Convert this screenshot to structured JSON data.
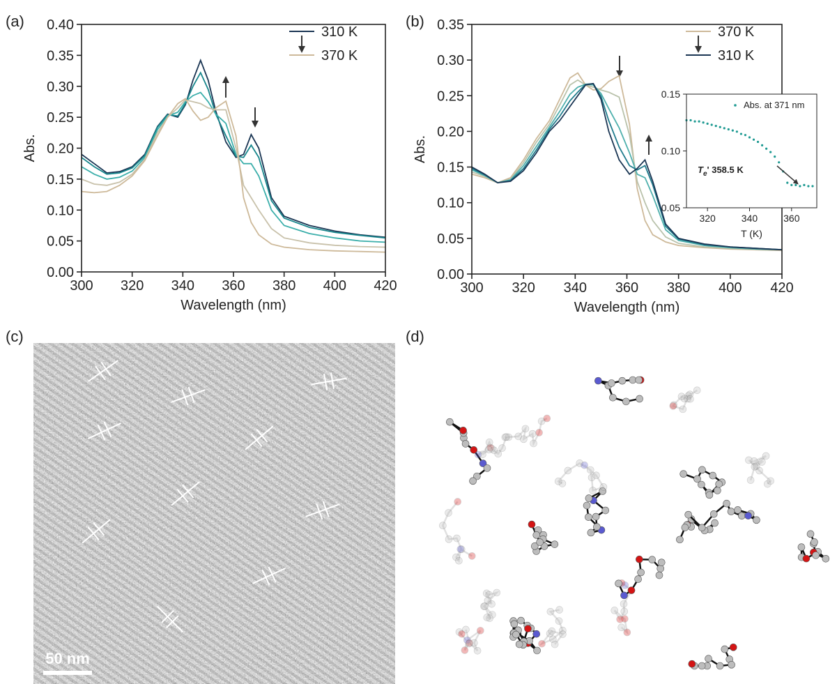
{
  "panel_labels": [
    "(a)",
    "(b)",
    "(c)",
    "(d)"
  ],
  "scale_bar": "50 nm",
  "chart_data": [
    {
      "type": "line",
      "xlabel": "Wavelength (nm)",
      "ylabel": "Abs.",
      "legend": "upper right",
      "x": [
        300,
        305,
        310,
        315,
        320,
        325,
        330,
        334,
        338,
        341,
        344,
        347,
        350,
        353,
        357,
        361,
        364,
        367,
        370,
        375,
        380,
        390,
        400,
        410,
        420
      ],
      "xlim": [
        300,
        420
      ],
      "xticks": [
        300,
        320,
        340,
        360,
        380,
        400,
        420
      ],
      "ylim": [
        0,
        0.4
      ],
      "yticks": [
        {
          "value": 0,
          "label": "0.00"
        },
        0.05,
        {
          "value": 0.1,
          "label": "0.10"
        },
        0.15,
        {
          "value": 0.2,
          "label": "0.20"
        },
        0.25,
        {
          "value": 0.3,
          "label": "0.30"
        },
        0.35,
        {
          "value": 0.4,
          "label": "0.40"
        }
      ],
      "series": [
        {
          "name": "310 K",
          "color": "#1a3553",
          "values": [
            0.19,
            0.175,
            0.16,
            0.162,
            0.17,
            0.19,
            0.235,
            0.255,
            0.25,
            0.27,
            0.31,
            0.342,
            0.31,
            0.26,
            0.21,
            0.185,
            0.19,
            0.222,
            0.2,
            0.12,
            0.09,
            0.075,
            0.066,
            0.06,
            0.056
          ]
        },
        {
          "color": "#17868c",
          "values": [
            0.185,
            0.17,
            0.158,
            0.16,
            0.168,
            0.188,
            0.234,
            0.254,
            0.252,
            0.272,
            0.3,
            0.322,
            0.295,
            0.255,
            0.22,
            0.187,
            0.185,
            0.205,
            0.185,
            0.115,
            0.087,
            0.072,
            0.064,
            0.059,
            0.055
          ]
        },
        {
          "color": "#3aaeaa",
          "values": [
            0.17,
            0.158,
            0.15,
            0.153,
            0.163,
            0.185,
            0.23,
            0.252,
            0.258,
            0.275,
            0.285,
            0.29,
            0.275,
            0.255,
            0.24,
            0.19,
            0.175,
            0.175,
            0.155,
            0.1,
            0.075,
            0.062,
            0.055,
            0.05,
            0.048
          ]
        },
        {
          "color": "#c8c1aa",
          "values": [
            0.15,
            0.142,
            0.14,
            0.145,
            0.158,
            0.182,
            0.225,
            0.25,
            0.265,
            0.278,
            0.275,
            0.272,
            0.265,
            0.262,
            0.262,
            0.2,
            0.14,
            0.12,
            0.1,
            0.07,
            0.055,
            0.047,
            0.043,
            0.041,
            0.04
          ]
        },
        {
          "name": "370 K",
          "color": "#cdb999",
          "values": [
            0.13,
            0.128,
            0.13,
            0.14,
            0.155,
            0.18,
            0.22,
            0.25,
            0.272,
            0.28,
            0.26,
            0.245,
            0.25,
            0.265,
            0.276,
            0.22,
            0.12,
            0.08,
            0.06,
            0.045,
            0.04,
            0.036,
            0.034,
            0.033,
            0.032
          ]
        }
      ]
    },
    {
      "type": "line",
      "xlabel": "Wavelength (nm)",
      "ylabel": "Abs.",
      "legend": "upper right",
      "x": [
        300,
        305,
        310,
        315,
        320,
        325,
        330,
        334,
        338,
        341,
        344,
        347,
        350,
        353,
        357,
        361,
        364,
        367,
        370,
        375,
        380,
        390,
        400,
        410,
        420
      ],
      "xlim": [
        300,
        420
      ],
      "xticks": [
        300,
        320,
        340,
        360,
        380,
        400,
        420
      ],
      "ylim": [
        0,
        0.35
      ],
      "yticks": [
        {
          "value": 0,
          "label": "0.00"
        },
        0.05,
        {
          "value": 0.1,
          "label": "0.10"
        },
        0.15,
        {
          "value": 0.2,
          "label": "0.20"
        },
        0.25,
        {
          "value": 0.3,
          "label": "0.30"
        },
        0.35
      ],
      "series": [
        {
          "name": "370 K",
          "color": "#cdb999",
          "values": [
            0.14,
            0.135,
            0.128,
            0.135,
            0.16,
            0.19,
            0.215,
            0.245,
            0.275,
            0.282,
            0.265,
            0.258,
            0.26,
            0.27,
            0.278,
            0.21,
            0.12,
            0.075,
            0.055,
            0.045,
            0.04,
            0.037,
            0.035,
            0.034,
            0.033
          ]
        },
        {
          "color": "#b9c2ab",
          "values": [
            0.143,
            0.137,
            0.128,
            0.133,
            0.156,
            0.185,
            0.21,
            0.237,
            0.265,
            0.272,
            0.265,
            0.262,
            0.258,
            0.255,
            0.248,
            0.195,
            0.13,
            0.1,
            0.075,
            0.052,
            0.043,
            0.038,
            0.036,
            0.035,
            0.034
          ]
        },
        {
          "color": "#4fb0ad",
          "values": [
            0.146,
            0.138,
            0.128,
            0.132,
            0.152,
            0.179,
            0.206,
            0.228,
            0.252,
            0.262,
            0.266,
            0.265,
            0.253,
            0.232,
            0.205,
            0.17,
            0.14,
            0.135,
            0.11,
            0.062,
            0.047,
            0.04,
            0.037,
            0.035,
            0.034
          ]
        },
        {
          "color": "#1f7b8c",
          "values": [
            0.148,
            0.139,
            0.128,
            0.131,
            0.148,
            0.174,
            0.203,
            0.221,
            0.243,
            0.255,
            0.266,
            0.267,
            0.249,
            0.215,
            0.178,
            0.152,
            0.146,
            0.152,
            0.125,
            0.067,
            0.049,
            0.041,
            0.038,
            0.036,
            0.034
          ]
        },
        {
          "name": "310 K",
          "color": "#1a3553",
          "values": [
            0.15,
            0.14,
            0.128,
            0.13,
            0.145,
            0.17,
            0.2,
            0.215,
            0.235,
            0.25,
            0.265,
            0.267,
            0.245,
            0.2,
            0.16,
            0.14,
            0.148,
            0.16,
            0.13,
            0.07,
            0.05,
            0.042,
            0.038,
            0.036,
            0.034
          ]
        }
      ]
    },
    {
      "type": "scatter",
      "xlabel": "T (K)",
      "legend": "upper right",
      "annotation": {
        "symbol": "T",
        "subscript": "e",
        "text": "' 358.5 K"
      },
      "x": [
        310,
        312,
        314,
        316,
        318,
        320,
        322,
        324,
        326,
        328,
        330,
        332,
        334,
        336,
        338,
        340,
        342,
        344,
        346,
        348,
        350,
        352,
        354,
        356,
        358,
        360,
        362,
        364,
        366,
        368,
        370
      ],
      "xlim": [
        310,
        372
      ],
      "xticks": [
        320,
        340,
        360
      ],
      "ylim": [
        0.05,
        0.15
      ],
      "yticks": [
        0.05,
        {
          "value": 0.1,
          "label": "0.10"
        },
        0.15
      ],
      "series": [
        {
          "name": "Abs. at 371 nm",
          "color": "#1e9a92",
          "values": [
            0.127,
            0.127,
            0.126,
            0.126,
            0.125,
            0.124,
            0.123,
            0.122,
            0.121,
            0.12,
            0.119,
            0.118,
            0.117,
            0.115,
            0.114,
            0.112,
            0.11,
            0.108,
            0.105,
            0.102,
            0.099,
            0.095,
            0.09,
            0.082,
            0.072,
            0.07,
            0.07,
            0.069,
            0.07,
            0.069,
            0.069
          ]
        }
      ]
    }
  ]
}
